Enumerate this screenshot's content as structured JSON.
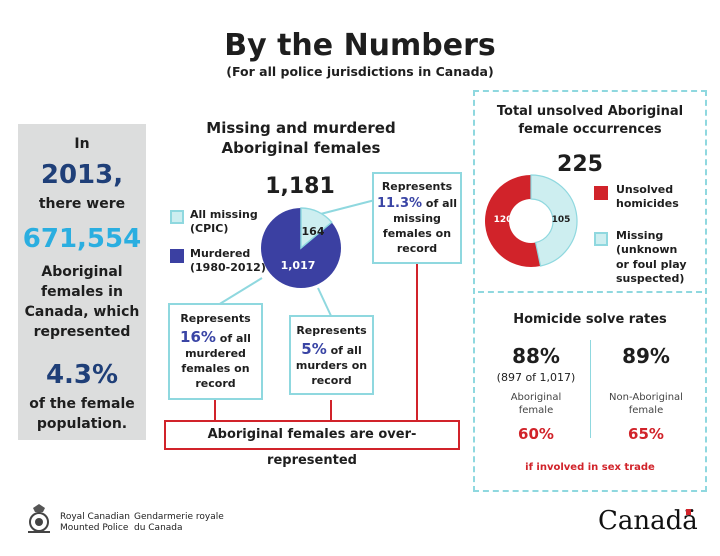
{
  "header": {
    "title": "By the Numbers",
    "subtitle": "(For all police jurisdictions in Canada)"
  },
  "left_panel": {
    "in_label": "In",
    "year": "2013,",
    "there_were": "there were",
    "count": "671,554",
    "desc_line1": "Aboriginal",
    "desc_line2": "females in",
    "desc_line3": "Canada, which",
    "desc_line4": "represented",
    "percent": "4.3%",
    "tail_line1": "of the female",
    "tail_line2": "population."
  },
  "missing_murdered": {
    "title_line1": "Missing and murdered",
    "title_line2": "Aboriginal females",
    "total": "1,181",
    "legend_missing_line1": "All missing",
    "legend_missing_line2": "(CPIC)",
    "legend_murdered_line1": "Murdered",
    "legend_murdered_line2": "(1980-2012)",
    "missing_value": "164",
    "murdered_value": "1,017",
    "colors": {
      "missing": "#cdeef0",
      "murdered": "#3b40a2",
      "line": "#8fd8df"
    }
  },
  "callouts": {
    "missing_pct": {
      "represents": "Represents",
      "pct": "11.3%",
      "text1": "of all",
      "text2": "missing",
      "text3": "females on",
      "text4": "record"
    },
    "murdered_pct": {
      "represents": "Represents",
      "pct": "16%",
      "text1": "of all",
      "text2": "murdered",
      "text3": "females on",
      "text4": "record"
    },
    "murders_pct": {
      "represents": "Represents",
      "pct": "5%",
      "text1": "of all",
      "text2": "murders on",
      "text3": "record"
    }
  },
  "banner": {
    "text": "Aboriginal females are over-represented",
    "color": "#d1232a"
  },
  "unsolved": {
    "title_line1": "Total unsolved Aboriginal",
    "title_line2": "female occurrences",
    "total": "225",
    "homicides_value": "120",
    "missing_value": "105",
    "legend_homicides_line1": "Unsolved",
    "legend_homicides_line2": "homicides",
    "legend_missing_line1": "Missing",
    "legend_missing_line2": "(unknown",
    "legend_missing_line3": "or foul play",
    "legend_missing_line4": "suspected)",
    "colors": {
      "homicides": "#d1232a",
      "missing": "#cdeef0"
    }
  },
  "solve_rates": {
    "title": "Homicide solve rates",
    "aboriginal_rate": "88%",
    "aboriginal_detail": "(897 of 1,017)",
    "aboriginal_label_line1": "Aboriginal",
    "aboriginal_label_line2": "female",
    "aboriginal_sex_trade": "60%",
    "non_aboriginal_rate": "89%",
    "non_aboriginal_label_line1": "Non-Aboriginal",
    "non_aboriginal_label_line2": "female",
    "non_aboriginal_sex_trade": "65%",
    "footnote": "if involved in sex trade"
  },
  "footer": {
    "org_en_line1": "Royal Canadian",
    "org_en_line2": "Mounted Police",
    "org_fr_line1": "Gendarmerie royale",
    "org_fr_line2": "du Canada",
    "wordmark": "Canadä"
  }
}
